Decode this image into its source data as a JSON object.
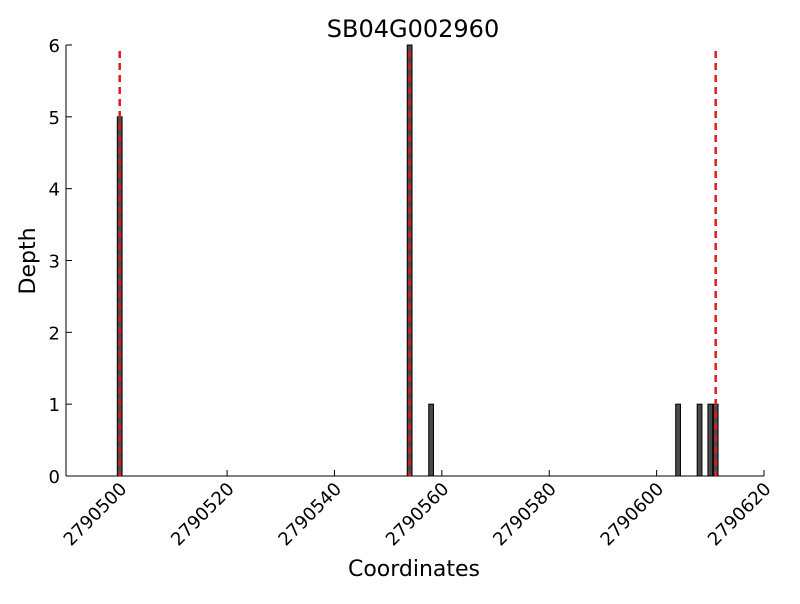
{
  "chart_data": {
    "type": "bar",
    "title": "SB04G002960",
    "xlabel": "Coordinates",
    "ylabel": "Depth",
    "xlim": [
      2790490,
      2790620
    ],
    "ylim": [
      0,
      6
    ],
    "x_ticks": [
      2790500,
      2790520,
      2790540,
      2790560,
      2790580,
      2790600,
      2790620
    ],
    "y_ticks": [
      0,
      1,
      2,
      3,
      4,
      5,
      6
    ],
    "grid": false,
    "bar_color": "#4a4a4a",
    "bar_edge_color": "#000000",
    "series": [
      {
        "x": [
          2790500,
          2790554,
          2790558,
          2790604,
          2790608,
          2790610,
          2790611
        ],
        "values": [
          5,
          6,
          1,
          1,
          1,
          1,
          1
        ]
      }
    ],
    "markers": {
      "style": "dashed",
      "color": "#e0191c",
      "x": [
        2790500,
        2790554,
        2790611
      ]
    }
  }
}
